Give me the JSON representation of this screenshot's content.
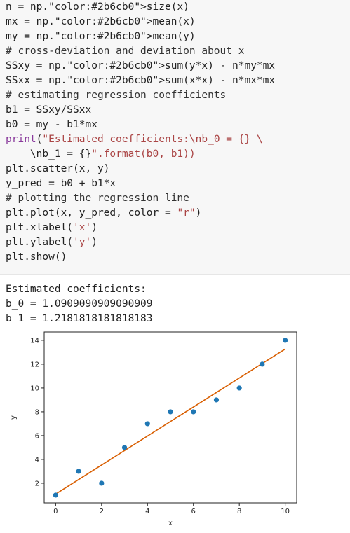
{
  "code": {
    "lines": [
      "n = np.size(x)",
      "mx = np.mean(x)",
      "my = np.mean(y)",
      "# cross-deviation and deviation about x",
      "SSxy = np.sum(y*x) - n*my*mx",
      "SSxx = np.sum(x*x) - n*mx*mx",
      "# estimating regression coefficients",
      "b1 = SSxy/SSxx",
      "b0 = my - b1*mx",
      "print(\"Estimated coefficients:\\nb_0 = {} \\",
      "    \\nb_1 = {}\".format(b0, b1))",
      "plt.scatter(x, y)",
      "y_pred = b0 + b1*x",
      "# plotting the regression line",
      "plt.plot(x, y_pred, color = \"r\")",
      "plt.xlabel('x')",
      "plt.ylabel('y')",
      "plt.show()"
    ]
  },
  "output": {
    "lines": [
      "Estimated coefficients:",
      "b_0 = 1.0909090909090909",
      "b_1 = 1.2181818181818183"
    ]
  },
  "colors": {
    "code_bg": "#f7f7f7",
    "points": "#1f77b4",
    "line": "#d95f02",
    "print_string": "#a44",
    "numpy_call": "#2b6cb0"
  },
  "chart_data": {
    "type": "scatter",
    "x": [
      0,
      1,
      2,
      3,
      4,
      5,
      6,
      7,
      8,
      9,
      10
    ],
    "y": [
      1,
      3,
      2,
      5,
      7,
      8,
      8,
      9,
      10,
      12,
      14
    ],
    "line": {
      "intercept": 1.0909090909090908,
      "slope": 1.2181818181818183
    },
    "xlabel": "x",
    "ylabel": "y",
    "xlim": [
      -0.5,
      10.5
    ],
    "ylim": [
      0.35,
      14.7
    ],
    "xticks": [
      "0",
      "2",
      "4",
      "6",
      "8",
      "10"
    ],
    "yticks": [
      "2",
      "4",
      "6",
      "8",
      "10",
      "12",
      "14"
    ],
    "grid": false
  }
}
